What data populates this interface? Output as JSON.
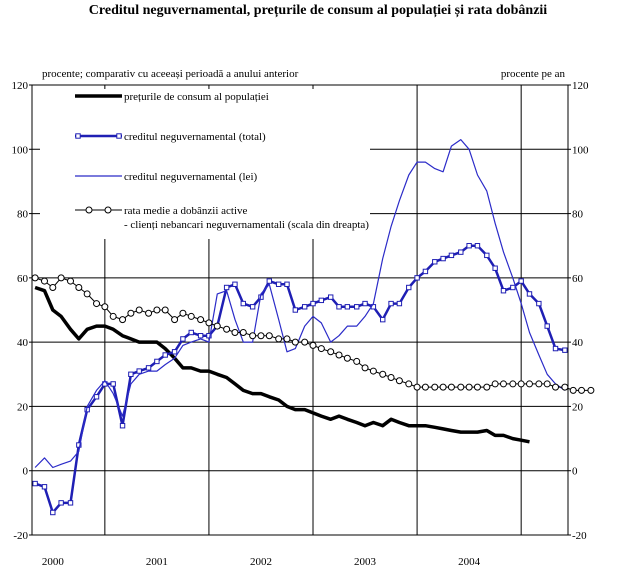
{
  "chart_data": {
    "type": "line",
    "title": "Creditul neguvernamental, prețurile de consum al populației și rata dobânzii",
    "left_axis_label": "procente; comparativ cu aceeași perioadă a anului anterior",
    "right_axis_label": "procente pe an",
    "ylim": [
      -20,
      120
    ],
    "y_ticks": [
      -20,
      0,
      20,
      40,
      60,
      80,
      100,
      120
    ],
    "y_tick_labels": [
      "-20",
      "0",
      "20",
      "40",
      "60",
      "80",
      "100",
      "120"
    ],
    "y_right_ticks": [
      -20,
      0,
      20,
      40,
      60,
      80,
      100,
      120
    ],
    "y_right_tick_labels": [
      "-20",
      "0",
      "20",
      "40",
      "60",
      "80",
      "100",
      "120"
    ],
    "xlim": [
      1999.8,
      2004.95
    ],
    "x_boundaries": [
      2000.5,
      2001.5,
      2002.5,
      2003.5,
      2004.5
    ],
    "x_labels": [
      {
        "label": "2000",
        "x": 2000.0
      },
      {
        "label": "2001",
        "x": 2001.0
      },
      {
        "label": "2002",
        "x": 2002.0
      },
      {
        "label": "2003",
        "x": 2003.0
      },
      {
        "label": "2004",
        "x": 2004.0
      }
    ],
    "legend_placement": "top-left",
    "series": [
      {
        "name": "prețurile de consum al populației",
        "color": "#000000",
        "style": "thick",
        "points": [
          [
            1999.83,
            57
          ],
          [
            1999.92,
            56
          ],
          [
            2000.0,
            50
          ],
          [
            2000.08,
            48
          ],
          [
            2000.17,
            44
          ],
          [
            2000.25,
            41
          ],
          [
            2000.33,
            44
          ],
          [
            2000.42,
            45
          ],
          [
            2000.5,
            45
          ],
          [
            2000.58,
            44
          ],
          [
            2000.67,
            42
          ],
          [
            2000.75,
            41
          ],
          [
            2000.83,
            40
          ],
          [
            2000.92,
            40
          ],
          [
            2001.0,
            40
          ],
          [
            2001.08,
            38
          ],
          [
            2001.17,
            35
          ],
          [
            2001.25,
            32
          ],
          [
            2001.33,
            32
          ],
          [
            2001.42,
            31
          ],
          [
            2001.5,
            31
          ],
          [
            2001.58,
            30
          ],
          [
            2001.67,
            29
          ],
          [
            2001.75,
            27
          ],
          [
            2001.83,
            25
          ],
          [
            2001.92,
            24
          ],
          [
            2002.0,
            24
          ],
          [
            2002.08,
            23
          ],
          [
            2002.17,
            22
          ],
          [
            2002.25,
            20
          ],
          [
            2002.33,
            19
          ],
          [
            2002.42,
            19
          ],
          [
            2002.5,
            18
          ],
          [
            2002.58,
            17
          ],
          [
            2002.67,
            16
          ],
          [
            2002.75,
            17
          ],
          [
            2002.83,
            16
          ],
          [
            2002.92,
            15
          ],
          [
            2003.0,
            14
          ],
          [
            2003.08,
            15
          ],
          [
            2003.17,
            14
          ],
          [
            2003.25,
            16
          ],
          [
            2003.33,
            15
          ],
          [
            2003.42,
            14
          ],
          [
            2003.5,
            14
          ],
          [
            2003.58,
            14
          ],
          [
            2003.67,
            13.5
          ],
          [
            2003.75,
            13
          ],
          [
            2003.83,
            12.5
          ],
          [
            2003.92,
            12
          ],
          [
            2004.0,
            12
          ],
          [
            2004.08,
            12
          ],
          [
            2004.17,
            12.5
          ],
          [
            2004.25,
            11
          ],
          [
            2004.33,
            11
          ],
          [
            2004.42,
            10
          ],
          [
            2004.5,
            9.5
          ],
          [
            2004.58,
            9
          ]
        ]
      },
      {
        "name": "creditul neguvernamental (total)",
        "color": "#1f1fb4",
        "style": "thick-marker",
        "points": [
          [
            1999.83,
            -4
          ],
          [
            1999.92,
            -5
          ],
          [
            2000.0,
            -13
          ],
          [
            2000.08,
            -10
          ],
          [
            2000.17,
            -10
          ],
          [
            2000.25,
            8
          ],
          [
            2000.33,
            19
          ],
          [
            2000.42,
            23
          ],
          [
            2000.5,
            27
          ],
          [
            2000.58,
            27
          ],
          [
            2000.67,
            14
          ],
          [
            2000.75,
            30
          ],
          [
            2000.83,
            31
          ],
          [
            2000.92,
            32
          ],
          [
            2001.0,
            34
          ],
          [
            2001.08,
            36
          ],
          [
            2001.17,
            37
          ],
          [
            2001.25,
            41
          ],
          [
            2001.33,
            43
          ],
          [
            2001.42,
            42
          ],
          [
            2001.5,
            42
          ],
          [
            2001.58,
            45
          ],
          [
            2001.67,
            57
          ],
          [
            2001.75,
            58
          ],
          [
            2001.83,
            52
          ],
          [
            2001.92,
            51
          ],
          [
            2002.0,
            54
          ],
          [
            2002.08,
            59
          ],
          [
            2002.17,
            58
          ],
          [
            2002.25,
            58
          ],
          [
            2002.33,
            50
          ],
          [
            2002.42,
            51
          ],
          [
            2002.5,
            52
          ],
          [
            2002.58,
            53
          ],
          [
            2002.67,
            54
          ],
          [
            2002.75,
            51
          ],
          [
            2002.83,
            51
          ],
          [
            2002.92,
            51
          ],
          [
            2003.0,
            52
          ],
          [
            2003.08,
            51
          ],
          [
            2003.17,
            47
          ],
          [
            2003.25,
            52
          ],
          [
            2003.33,
            52
          ],
          [
            2003.42,
            57
          ],
          [
            2003.5,
            60
          ],
          [
            2003.58,
            62
          ],
          [
            2003.67,
            65
          ],
          [
            2003.75,
            66
          ],
          [
            2003.83,
            67
          ],
          [
            2003.92,
            68
          ],
          [
            2004.0,
            70
          ],
          [
            2004.08,
            70
          ],
          [
            2004.17,
            67
          ],
          [
            2004.25,
            63
          ],
          [
            2004.33,
            56
          ],
          [
            2004.42,
            57
          ],
          [
            2004.5,
            59
          ],
          [
            2004.58,
            55
          ],
          [
            2004.67,
            52
          ],
          [
            2004.75,
            45
          ],
          [
            2004.83,
            38
          ],
          [
            2004.92,
            37.5
          ]
        ]
      },
      {
        "name": "creditul neguvernamental (lei)",
        "color": "#2b2bc8",
        "style": "thin",
        "points": [
          [
            1999.83,
            1
          ],
          [
            1999.92,
            4
          ],
          [
            2000.0,
            1
          ],
          [
            2000.08,
            2
          ],
          [
            2000.17,
            3
          ],
          [
            2000.25,
            6
          ],
          [
            2000.33,
            20
          ],
          [
            2000.42,
            25
          ],
          [
            2000.5,
            28
          ],
          [
            2000.58,
            24
          ],
          [
            2000.67,
            17
          ],
          [
            2000.75,
            27
          ],
          [
            2000.83,
            30
          ],
          [
            2000.92,
            31
          ],
          [
            2001.0,
            31
          ],
          [
            2001.08,
            33
          ],
          [
            2001.17,
            35
          ],
          [
            2001.25,
            39
          ],
          [
            2001.33,
            40
          ],
          [
            2001.42,
            41
          ],
          [
            2001.5,
            40
          ],
          [
            2001.58,
            55
          ],
          [
            2001.67,
            56
          ],
          [
            2001.75,
            47
          ],
          [
            2001.83,
            40
          ],
          [
            2001.92,
            40
          ],
          [
            2002.0,
            55
          ],
          [
            2002.08,
            58
          ],
          [
            2002.17,
            47
          ],
          [
            2002.25,
            37
          ],
          [
            2002.33,
            38
          ],
          [
            2002.42,
            45
          ],
          [
            2002.5,
            48
          ],
          [
            2002.58,
            46
          ],
          [
            2002.67,
            40
          ],
          [
            2002.75,
            42
          ],
          [
            2002.83,
            45
          ],
          [
            2002.92,
            45
          ],
          [
            2003.0,
            48
          ],
          [
            2003.08,
            52
          ],
          [
            2003.17,
            66
          ],
          [
            2003.25,
            76
          ],
          [
            2003.33,
            84
          ],
          [
            2003.42,
            92
          ],
          [
            2003.5,
            96
          ],
          [
            2003.58,
            96
          ],
          [
            2003.67,
            94
          ],
          [
            2003.75,
            93
          ],
          [
            2003.83,
            101
          ],
          [
            2003.92,
            103
          ],
          [
            2004.0,
            100
          ],
          [
            2004.08,
            92
          ],
          [
            2004.17,
            87
          ],
          [
            2004.25,
            77
          ],
          [
            2004.33,
            68
          ],
          [
            2004.42,
            60
          ],
          [
            2004.5,
            52
          ],
          [
            2004.58,
            43
          ],
          [
            2004.67,
            36
          ],
          [
            2004.75,
            30
          ],
          [
            2004.83,
            27
          ],
          [
            2004.92,
            25
          ]
        ]
      },
      {
        "name": "rata medie a dobânzii active - clienți nebancari neguvernamentali (scala din dreapta)",
        "legend_lines": [
          "rata medie a dobânzii active",
          "- clienți nebancari neguvernamentali (scala din dreapta)"
        ],
        "color": "#000000",
        "style": "circle-marker",
        "points": [
          [
            1999.83,
            60
          ],
          [
            1999.92,
            59
          ],
          [
            2000.0,
            57
          ],
          [
            2000.08,
            60
          ],
          [
            2000.17,
            59
          ],
          [
            2000.25,
            57
          ],
          [
            2000.33,
            55
          ],
          [
            2000.42,
            52
          ],
          [
            2000.5,
            51
          ],
          [
            2000.58,
            48
          ],
          [
            2000.67,
            47
          ],
          [
            2000.75,
            49
          ],
          [
            2000.83,
            50
          ],
          [
            2000.92,
            49
          ],
          [
            2001.0,
            50
          ],
          [
            2001.08,
            50
          ],
          [
            2001.17,
            47
          ],
          [
            2001.25,
            49
          ],
          [
            2001.33,
            48
          ],
          [
            2001.42,
            47
          ],
          [
            2001.5,
            46
          ],
          [
            2001.58,
            45
          ],
          [
            2001.67,
            44
          ],
          [
            2001.75,
            43
          ],
          [
            2001.83,
            43
          ],
          [
            2001.92,
            42
          ],
          [
            2002.0,
            42
          ],
          [
            2002.08,
            42
          ],
          [
            2002.17,
            41
          ],
          [
            2002.25,
            41
          ],
          [
            2002.33,
            40
          ],
          [
            2002.42,
            40
          ],
          [
            2002.5,
            39
          ],
          [
            2002.58,
            38
          ],
          [
            2002.67,
            37
          ],
          [
            2002.75,
            36
          ],
          [
            2002.83,
            35
          ],
          [
            2002.92,
            34
          ],
          [
            2003.0,
            32
          ],
          [
            2003.08,
            31
          ],
          [
            2003.17,
            30
          ],
          [
            2003.25,
            29
          ],
          [
            2003.33,
            28
          ],
          [
            2003.42,
            27
          ],
          [
            2003.5,
            26
          ],
          [
            2003.58,
            26
          ],
          [
            2003.67,
            26
          ],
          [
            2003.75,
            26
          ],
          [
            2003.83,
            26
          ],
          [
            2003.92,
            26
          ],
          [
            2004.0,
            26
          ],
          [
            2004.08,
            26
          ],
          [
            2004.17,
            26
          ],
          [
            2004.25,
            27
          ],
          [
            2004.33,
            27
          ],
          [
            2004.42,
            27
          ],
          [
            2004.5,
            27
          ],
          [
            2004.58,
            27
          ],
          [
            2004.67,
            27
          ],
          [
            2004.75,
            27
          ],
          [
            2004.83,
            26
          ],
          [
            2004.92,
            26
          ],
          [
            2005.0,
            25
          ],
          [
            2005.08,
            25
          ],
          [
            2005.17,
            25
          ]
        ]
      }
    ]
  }
}
